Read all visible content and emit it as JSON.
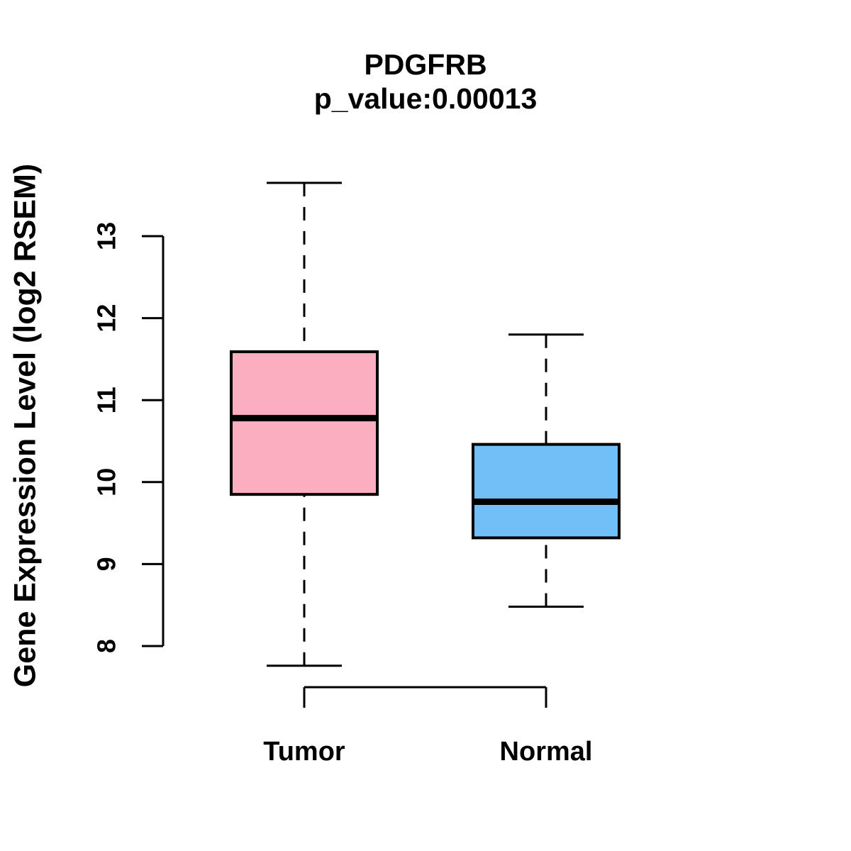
{
  "figure": {
    "title": "PDGFRB",
    "subtitle": "p_value:0.00013",
    "ylabel": "Gene Expression Level (log2 RSEM)"
  },
  "chart_data": {
    "type": "boxplot",
    "title": "PDGFRB",
    "subtitle": "p_value:0.00013",
    "ylabel": "Gene Expression Level (log2 RSEM)",
    "xlabel": "",
    "categories": [
      "Tumor",
      "Normal"
    ],
    "series": [
      {
        "name": "Tumor",
        "color": "#FCAEC1",
        "whisker_low": 7.76,
        "q1": 9.85,
        "median": 10.78,
        "q3": 11.59,
        "whisker_high": 13.65
      },
      {
        "name": "Normal",
        "color": "#72BEF7",
        "whisker_low": 8.48,
        "q1": 9.32,
        "median": 9.76,
        "q3": 10.46,
        "whisker_high": 11.8
      }
    ],
    "yticks": [
      8,
      9,
      10,
      11,
      12,
      13
    ],
    "ylim": [
      7.4,
      13.9
    ],
    "grid": false,
    "legend": "none",
    "box_border_color": "#000000",
    "background": "#FFFFFF"
  }
}
